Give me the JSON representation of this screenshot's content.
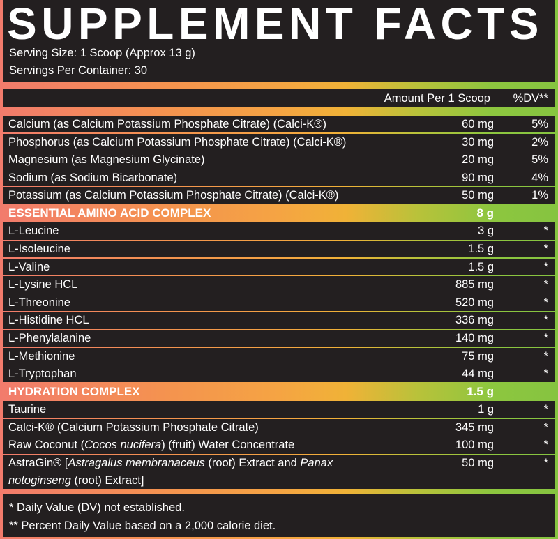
{
  "header": {
    "title": "SUPPLEMENT FACTS",
    "serving_size": "Serving Size: 1 Scoop (Approx 13 g)",
    "servings_per_container": "Servings Per Container: 30"
  },
  "columns": {
    "amount": "Amount Per 1 Scoop",
    "dv": "%DV**"
  },
  "colors": {
    "background_dark": "#231f20",
    "gradient_left": "#f27b6c",
    "gradient_mid": "#f5a443",
    "gradient_right": "#8dc63f",
    "text": "#ffffff"
  },
  "rows": [
    {
      "type": "item",
      "name": [
        {
          "t": "Calcium (as Calcium Potassium Phosphate Citrate) (Calci-K®)"
        }
      ],
      "amount": "60 mg",
      "dv": "5%"
    },
    {
      "type": "item",
      "name": [
        {
          "t": "Phosphorus (as Calcium Potassium Phosphate Citrate) (Calci-K®)"
        }
      ],
      "amount": "30 mg",
      "dv": "2%"
    },
    {
      "type": "item",
      "name": [
        {
          "t": "Magnesium (as Magnesium Glycinate)"
        }
      ],
      "amount": "20 mg",
      "dv": "5%"
    },
    {
      "type": "item",
      "name": [
        {
          "t": "Sodium (as Sodium Bicarbonate)"
        }
      ],
      "amount": "90 mg",
      "dv": "4%"
    },
    {
      "type": "item",
      "name": [
        {
          "t": "Potassium (as Calcium Potassium Phosphate Citrate) (Calci-K®)"
        }
      ],
      "amount": "50 mg",
      "dv": "1%"
    },
    {
      "type": "section",
      "name": [
        {
          "t": "ESSENTIAL AMINO ACID COMPLEX"
        }
      ],
      "amount": "8 g",
      "dv": ""
    },
    {
      "type": "item",
      "name": [
        {
          "t": "L-Leucine"
        }
      ],
      "amount": "3 g",
      "dv": "*"
    },
    {
      "type": "item",
      "name": [
        {
          "t": "L-Isoleucine"
        }
      ],
      "amount": "1.5 g",
      "dv": "*"
    },
    {
      "type": "item",
      "name": [
        {
          "t": "L-Valine"
        }
      ],
      "amount": "1.5 g",
      "dv": "*"
    },
    {
      "type": "item",
      "name": [
        {
          "t": "L-Lysine HCL"
        }
      ],
      "amount": "885 mg",
      "dv": "*"
    },
    {
      "type": "item",
      "name": [
        {
          "t": "L-Threonine"
        }
      ],
      "amount": "520 mg",
      "dv": "*"
    },
    {
      "type": "item",
      "name": [
        {
          "t": "L-Histidine HCL"
        }
      ],
      "amount": "336 mg",
      "dv": "*"
    },
    {
      "type": "item",
      "name": [
        {
          "t": "L-Phenylalanine"
        }
      ],
      "amount": "140 mg",
      "dv": "*"
    },
    {
      "type": "item",
      "name": [
        {
          "t": "L-Methionine"
        }
      ],
      "amount": "75 mg",
      "dv": "*"
    },
    {
      "type": "item",
      "name": [
        {
          "t": "L-Tryptophan"
        }
      ],
      "amount": "44 mg",
      "dv": "*"
    },
    {
      "type": "section",
      "name": [
        {
          "t": "HYDRATION COMPLEX"
        }
      ],
      "amount": "1.5 g",
      "dv": ""
    },
    {
      "type": "item",
      "name": [
        {
          "t": "Taurine"
        }
      ],
      "amount": "1 g",
      "dv": "*"
    },
    {
      "type": "item",
      "name": [
        {
          "t": "Calci-K® (Calcium Potassium Phosphate Citrate)"
        }
      ],
      "amount": "345 mg",
      "dv": "*"
    },
    {
      "type": "item",
      "name": [
        {
          "t": "Raw Coconut ("
        },
        {
          "t": "Cocos nucifera",
          "i": true
        },
        {
          "t": ") (fruit) Water Concentrate"
        }
      ],
      "amount": "100 mg",
      "dv": "*"
    },
    {
      "type": "item",
      "tall": true,
      "name": [
        {
          "t": "AstraGin® ["
        },
        {
          "t": "Astragalus membranaceus",
          "i": true
        },
        {
          "t": " (root) Extract and "
        },
        {
          "t": "Panax notoginseng",
          "i": true
        },
        {
          "t": " (root) Extract]"
        }
      ],
      "amount": "50 mg",
      "dv": "*"
    }
  ],
  "footer": {
    "note1": "* Daily Value (DV) not established.",
    "note2": "** Percent Daily Value based on a 2,000 calorie diet."
  }
}
